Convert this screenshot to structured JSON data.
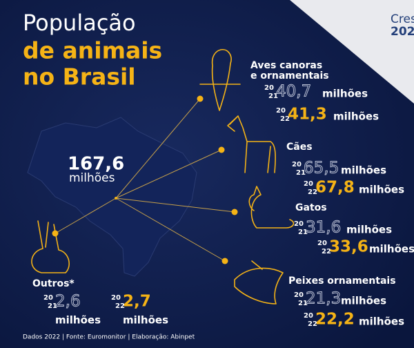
{
  "header": {
    "title_line1": "População",
    "title_line2": "de animais",
    "title_line3": "no Brasil"
  },
  "corner": {
    "line1": "Cres",
    "line2": "202"
  },
  "total": {
    "value": "167,6",
    "unit": "milhões"
  },
  "unit": "milhões",
  "years": {
    "y2021": [
      "20",
      "21"
    ],
    "y2022": [
      "20",
      "22"
    ]
  },
  "groups": [
    {
      "name": [
        "Aves canoras",
        "e ornamentais"
      ],
      "v2021": "40,7",
      "v2022": "41,3"
    },
    {
      "name": [
        "Cães"
      ],
      "v2021": "65,5",
      "v2022": "67,8"
    },
    {
      "name": [
        "Gatos"
      ],
      "v2021": "31,6",
      "v2022": "33,6"
    },
    {
      "name": [
        "Peixes ornamentais"
      ],
      "v2021": "21,3",
      "v2022": "22,2"
    },
    {
      "name": [
        "Outros*"
      ],
      "v2021": "2,6",
      "v2022": "2,7"
    }
  ],
  "footer": "Dados 2022 | Fonte: Euromonitor | Elaboração: Abinpet"
}
